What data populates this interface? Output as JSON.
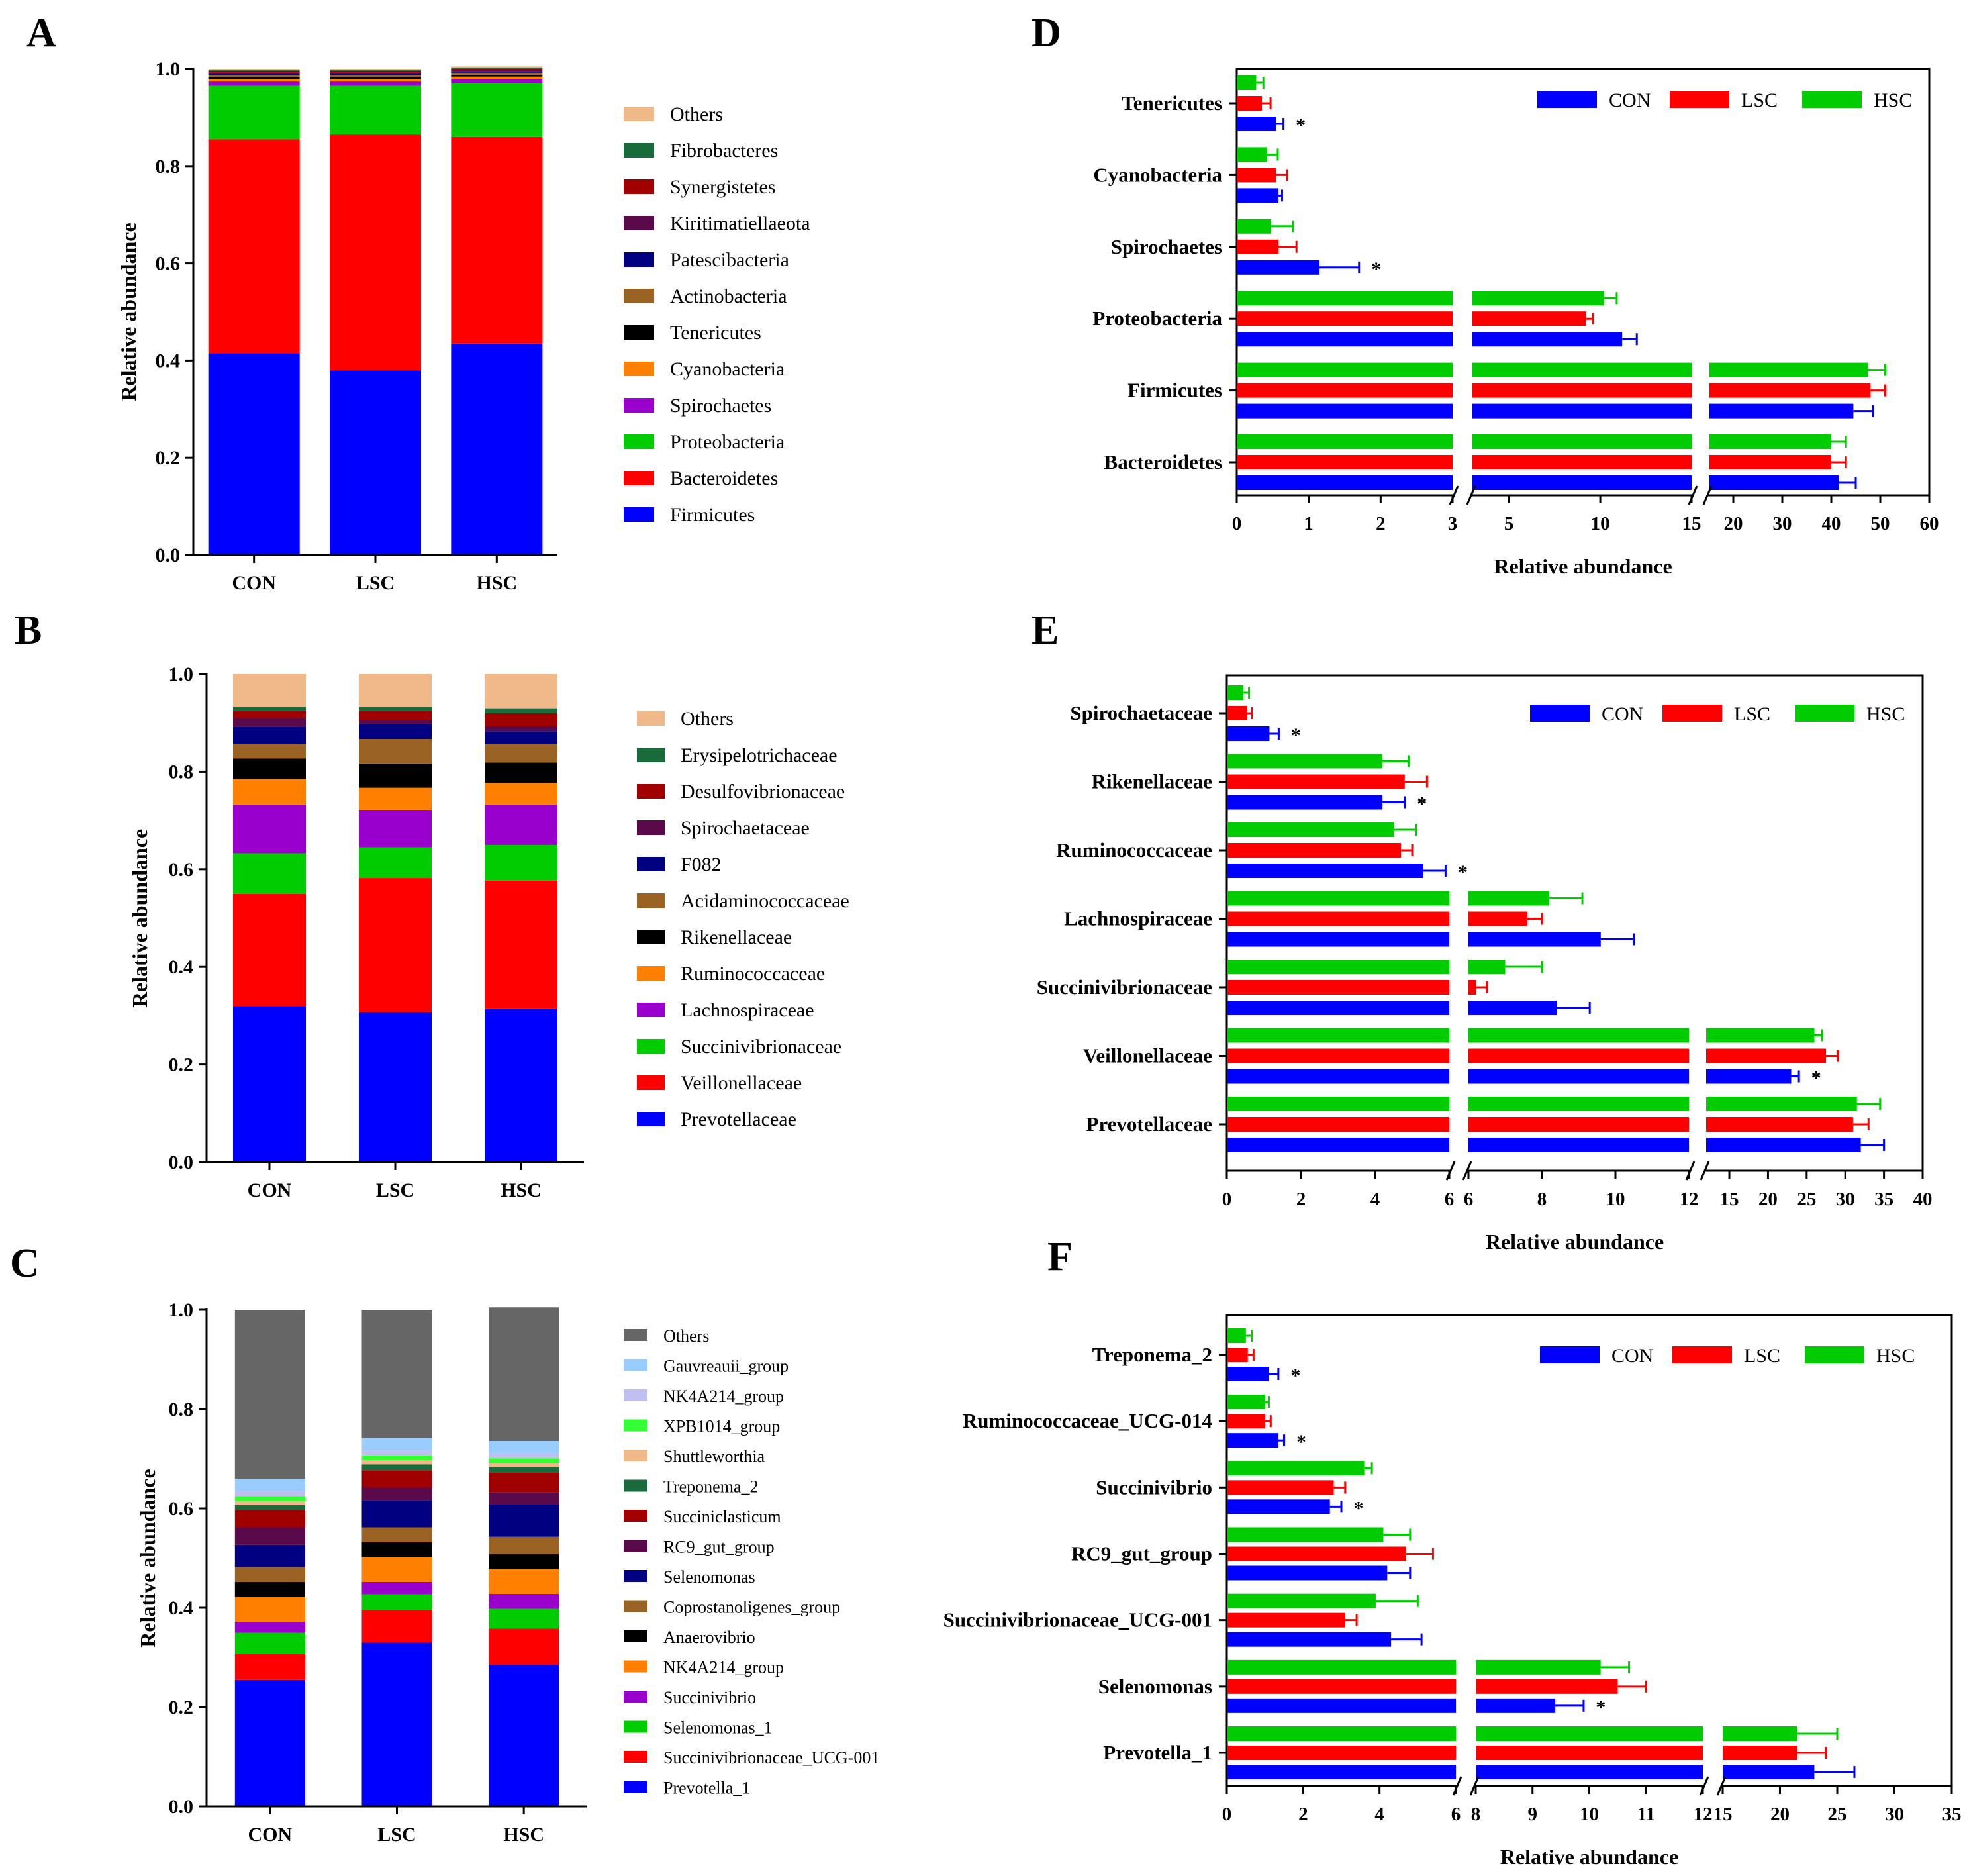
{
  "colors": {
    "CON": "#0000ff",
    "LSC": "#ff0000",
    "HSC": "#00cc00"
  },
  "chart_data": [
    {
      "panel": "A",
      "type": "stacked-bar",
      "ylabel": "Relative abundance",
      "ylim": [
        0,
        1
      ],
      "yticks": [
        "0.0",
        "0.2",
        "0.4",
        "0.6",
        "0.8",
        "1.0"
      ],
      "categories": [
        "CON",
        "LSC",
        "HSC"
      ],
      "series": [
        {
          "name": "Firmicutes",
          "color": "#0000ff",
          "values": [
            0.415,
            0.38,
            0.435
          ]
        },
        {
          "name": "Bacteroidetes",
          "color": "#ff0000",
          "values": [
            0.44,
            0.485,
            0.425
          ]
        },
        {
          "name": "Proteobacteria",
          "color": "#00cc00",
          "values": [
            0.11,
            0.1,
            0.11
          ]
        },
        {
          "name": "Spirochaetes",
          "color": "#9900cc",
          "values": [
            0.009,
            0.009,
            0.009
          ]
        },
        {
          "name": "Cyanobacteria",
          "color": "#ff8000",
          "values": [
            0.005,
            0.005,
            0.005
          ]
        },
        {
          "name": "Tenericutes",
          "color": "#000000",
          "values": [
            0.004,
            0.004,
            0.004
          ]
        },
        {
          "name": "Actinobacteria",
          "color": "#9a6324",
          "values": [
            0.004,
            0.004,
            0.004
          ]
        },
        {
          "name": "Patescibacteria",
          "color": "#000080",
          "values": [
            0.003,
            0.003,
            0.003
          ]
        },
        {
          "name": "Kiritimatiellaeota",
          "color": "#5a0a4a",
          "values": [
            0.003,
            0.003,
            0.003
          ]
        },
        {
          "name": "Synergistetes",
          "color": "#a00000",
          "values": [
            0.003,
            0.003,
            0.003
          ]
        },
        {
          "name": "Fibrobacteres",
          "color": "#1a6b3c",
          "values": [
            0.002,
            0.002,
            0.002
          ]
        },
        {
          "name": "Others",
          "color": "#f0b98a",
          "values": [
            0.002,
            0.002,
            0.002
          ]
        }
      ]
    },
    {
      "panel": "B",
      "type": "stacked-bar",
      "ylabel": "Relative abundance",
      "ylim": [
        0,
        1
      ],
      "yticks": [
        "0.0",
        "0.2",
        "0.4",
        "0.6",
        "0.8",
        "1.0"
      ],
      "categories": [
        "CON",
        "LSC",
        "HSC"
      ],
      "series": [
        {
          "name": "Prevotellaceae",
          "color": "#0000ff",
          "values": [
            0.32,
            0.307,
            0.315
          ]
        },
        {
          "name": "Veillonellaceae",
          "color": "#ff0000",
          "values": [
            0.23,
            0.275,
            0.262
          ]
        },
        {
          "name": "Succinivibrionaceae",
          "color": "#00cc00",
          "values": [
            0.083,
            0.063,
            0.073
          ]
        },
        {
          "name": "Lachnospiraceae",
          "color": "#9900cc",
          "values": [
            0.1,
            0.077,
            0.083
          ]
        },
        {
          "name": "Ruminococcaceae",
          "color": "#ff8000",
          "values": [
            0.052,
            0.045,
            0.044
          ]
        },
        {
          "name": "Rikenellaceae",
          "color": "#000000",
          "values": [
            0.042,
            0.05,
            0.042
          ]
        },
        {
          "name": "Acidaminococcaceae",
          "color": "#9a6324",
          "values": [
            0.03,
            0.05,
            0.038
          ]
        },
        {
          "name": "F082",
          "color": "#000080",
          "values": [
            0.035,
            0.03,
            0.026
          ]
        },
        {
          "name": "Spirochaetaceae",
          "color": "#5a0a4a",
          "values": [
            0.018,
            0.008,
            0.01
          ]
        },
        {
          "name": "Desulfovibrionaceae",
          "color": "#a00000",
          "values": [
            0.015,
            0.02,
            0.027
          ]
        },
        {
          "name": "Erysipelotrichaceae",
          "color": "#1a6b3c",
          "values": [
            0.008,
            0.008,
            0.01
          ]
        },
        {
          "name": "Others",
          "color": "#f0b98a",
          "values": [
            0.067,
            0.067,
            0.07
          ]
        }
      ]
    },
    {
      "panel": "C",
      "type": "stacked-bar",
      "ylabel": "Relative abundance",
      "ylim": [
        0,
        1
      ],
      "yticks": [
        "0.0",
        "0.2",
        "0.4",
        "0.6",
        "0.8",
        "1.0"
      ],
      "categories": [
        "CON",
        "LSC",
        "HSC"
      ],
      "series": [
        {
          "name": "Prevotella_1",
          "color": "#0000ff",
          "values": [
            0.255,
            0.33,
            0.285
          ]
        },
        {
          "name": "Succinivibrionaceae_UCG-001",
          "color": "#ff0000",
          "values": [
            0.052,
            0.065,
            0.073
          ]
        },
        {
          "name": "Selenomonas_1",
          "color": "#00cc00",
          "values": [
            0.043,
            0.032,
            0.04
          ]
        },
        {
          "name": "Succinivibrio",
          "color": "#9900cc",
          "values": [
            0.022,
            0.025,
            0.03
          ]
        },
        {
          "name": "NK4A214_group",
          "color": "#ff8000",
          "values": [
            0.05,
            0.05,
            0.05
          ]
        },
        {
          "name": "Anaerovibrio",
          "color": "#000000",
          "values": [
            0.03,
            0.03,
            0.03
          ]
        },
        {
          "name": "Coprostanoligenes_group",
          "color": "#9a6324",
          "values": [
            0.03,
            0.03,
            0.035
          ]
        },
        {
          "name": "Selenomonas",
          "color": "#000080",
          "values": [
            0.045,
            0.055,
            0.065
          ]
        },
        {
          "name": "RC9_gut_group",
          "color": "#5a0a4a",
          "values": [
            0.035,
            0.025,
            0.025
          ]
        },
        {
          "name": "Succiniclasticum",
          "color": "#a00000",
          "values": [
            0.035,
            0.035,
            0.04
          ]
        },
        {
          "name": "Treponema_2",
          "color": "#1a6b3c",
          "values": [
            0.01,
            0.012,
            0.01
          ]
        },
        {
          "name": "Shuttleworthia",
          "color": "#f0b98a",
          "values": [
            0.008,
            0.008,
            0.008
          ]
        },
        {
          "name": "XPB1014_group",
          "color": "#33ff33",
          "values": [
            0.01,
            0.01,
            0.01
          ]
        },
        {
          "name": "NK4A214_group",
          "color": "#c0c0f0",
          "values": [
            0.01,
            0.01,
            0.01
          ]
        },
        {
          "name": "Gauvreauii_group",
          "color": "#99ccff",
          "values": [
            0.025,
            0.025,
            0.025
          ]
        },
        {
          "name": "Others",
          "color": "#666666",
          "values": [
            0.34,
            0.258,
            0.269
          ]
        }
      ]
    },
    {
      "panel": "D",
      "type": "broken-axis-grouped-hbar",
      "xlabel": "Relative abundance",
      "segments": [
        [
          0,
          3
        ],
        [
          3,
          15
        ],
        [
          15,
          60
        ]
      ],
      "xticks": [
        [
          "0",
          "1",
          "2",
          "3"
        ],
        [
          "5",
          "10",
          "15"
        ],
        [
          "20",
          "30",
          "40",
          "50",
          "60"
        ]
      ],
      "xtickvals": [
        [
          0,
          1,
          2,
          3
        ],
        [
          5,
          10,
          15
        ],
        [
          20,
          30,
          40,
          50,
          60
        ]
      ],
      "categories": [
        "Tenericutes",
        "Cyanobacteria",
        "Spirochaetes",
        "Proteobacteria",
        "Firmicutes",
        "Bacteroidetes"
      ],
      "series": [
        {
          "name": "CON",
          "color": "#0000ff",
          "values": [
            0.55,
            0.58,
            1.15,
            11.2,
            44.5,
            41.5
          ],
          "err": [
            0.1,
            0.05,
            0.55,
            0.8,
            4,
            3.5
          ]
        },
        {
          "name": "LSC",
          "color": "#ff0000",
          "values": [
            0.35,
            0.55,
            0.58,
            9.2,
            48,
            40
          ],
          "err": [
            0.12,
            0.15,
            0.25,
            0.4,
            3,
            3
          ]
        },
        {
          "name": "HSC",
          "color": "#00cc00",
          "values": [
            0.27,
            0.42,
            0.48,
            10.2,
            47.5,
            40
          ],
          "err": [
            0.1,
            0.15,
            0.3,
            0.7,
            3.5,
            3
          ]
        }
      ],
      "annotations": [
        {
          "label": "*",
          "category": "Tenericutes",
          "series": "CON"
        },
        {
          "label": "*",
          "category": "Spirochaetes",
          "series": "CON"
        }
      ]
    },
    {
      "panel": "E",
      "type": "broken-axis-grouped-hbar",
      "xlabel": "Relative abundance",
      "segments": [
        [
          0,
          6
        ],
        [
          6,
          12
        ],
        [
          12,
          40
        ]
      ],
      "xticks": [
        [
          "0",
          "2",
          "4",
          "6"
        ],
        [
          "6",
          "8",
          "10",
          "12"
        ],
        [
          "15",
          "20",
          "25",
          "30",
          "35",
          "40"
        ]
      ],
      "xtickvals": [
        [
          0,
          2,
          4,
          6
        ],
        [
          6,
          8,
          10,
          12
        ],
        [
          15,
          20,
          25,
          30,
          35,
          40
        ]
      ],
      "categories": [
        "Spirochaetaceae",
        "Rikenellaceae",
        "Ruminococcaceae",
        "Lachnospiraceae",
        "Succinivibrionaceae",
        "Veillonellaceae",
        "Prevotellaceae"
      ],
      "series": [
        {
          "name": "CON",
          "color": "#0000ff",
          "values": [
            1.15,
            4.2,
            5.3,
            9.6,
            8.4,
            23,
            32
          ],
          "err": [
            0.25,
            0.6,
            0.6,
            0.9,
            0.9,
            1,
            3
          ]
        },
        {
          "name": "LSC",
          "color": "#ff0000",
          "values": [
            0.55,
            4.8,
            4.7,
            7.6,
            6.2,
            27.5,
            31
          ],
          "err": [
            0.12,
            0.6,
            0.3,
            0.4,
            0.3,
            1.5,
            2
          ]
        },
        {
          "name": "HSC",
          "color": "#00cc00",
          "values": [
            0.45,
            4.2,
            4.5,
            8.2,
            7,
            26,
            31.5
          ],
          "err": [
            0.15,
            0.7,
            0.6,
            0.9,
            1,
            1,
            3
          ]
        }
      ],
      "annotations": [
        {
          "label": "*",
          "category": "Spirochaetaceae",
          "series": "CON"
        },
        {
          "label": "*",
          "category": "Rikenellaceae",
          "series": "CON"
        },
        {
          "label": "*",
          "category": "Ruminococcaceae",
          "series": "CON"
        },
        {
          "label": "*",
          "category": "Veillonellaceae",
          "series": "CON"
        }
      ]
    },
    {
      "panel": "F",
      "type": "broken-axis-grouped-hbar",
      "xlabel": "Relative abundance",
      "segments": [
        [
          0,
          6
        ],
        [
          8,
          12
        ],
        [
          15,
          35
        ]
      ],
      "xticks": [
        [
          "0",
          "2",
          "4",
          "6"
        ],
        [
          "8",
          "9",
          "10",
          "11",
          "12"
        ],
        [
          "15",
          "20",
          "25",
          "30",
          "35"
        ]
      ],
      "xtickvals": [
        [
          0,
          2,
          4,
          6
        ],
        [
          8,
          9,
          10,
          11,
          12
        ],
        [
          15,
          20,
          25,
          30,
          35
        ]
      ],
      "categories": [
        "Treponema_2",
        "Ruminococcaceae_UCG-014",
        "Succinivibrio",
        "RC9_gut_group",
        "Succinivibrionaceae_UCG-001",
        "Selenomonas",
        "Prevotella_1"
      ],
      "series": [
        {
          "name": "CON",
          "color": "#0000ff",
          "values": [
            1.1,
            1.35,
            2.7,
            4.2,
            4.3,
            9.4,
            23
          ],
          "err": [
            0.25,
            0.15,
            0.3,
            0.6,
            0.8,
            0.5,
            3.5
          ]
        },
        {
          "name": "LSC",
          "color": "#ff0000",
          "values": [
            0.55,
            1.0,
            2.8,
            4.7,
            3.1,
            10.5,
            21.5
          ],
          "err": [
            0.15,
            0.15,
            0.3,
            0.7,
            0.3,
            0.5,
            2.5
          ]
        },
        {
          "name": "HSC",
          "color": "#00cc00",
          "values": [
            0.5,
            1.0,
            3.6,
            4.1,
            3.9,
            10.2,
            21.5
          ],
          "err": [
            0.15,
            0.1,
            0.2,
            0.7,
            1.1,
            0.5,
            3.5
          ]
        }
      ],
      "annotations": [
        {
          "label": "*",
          "category": "Treponema_2",
          "series": "CON"
        },
        {
          "label": "*",
          "category": "Ruminococcaceae_UCG-014",
          "series": "CON"
        },
        {
          "label": "*",
          "category": "Succinivibrio",
          "series": "CON"
        },
        {
          "label": "*",
          "category": "Selenomonas",
          "series": "CON"
        }
      ]
    }
  ]
}
